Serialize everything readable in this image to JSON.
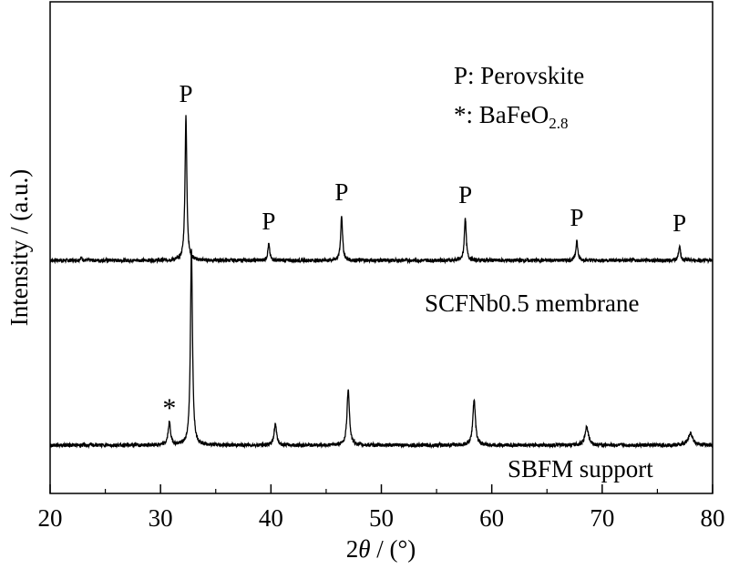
{
  "chart_data": {
    "type": "line",
    "xlabel_prefix": "2",
    "xlabel_symbol": "θ",
    "xlabel_suffix": " / (°)",
    "ylabel": "Intensity / (a.u.)",
    "xlim": [
      20,
      80
    ],
    "x_ticks": [
      "20",
      "30",
      "40",
      "50",
      "60",
      "70",
      "80"
    ],
    "y_ticks": "none",
    "grid": false,
    "legend": {
      "position": "top-right",
      "line1": "P: Perovskite",
      "line2_prefix": "*: BaFeO",
      "line2_sub": "2.8"
    },
    "series": [
      {
        "name": "SCFNb0.5 membrane",
        "baseline": 1.0,
        "peaks": [
          {
            "x": 22.8,
            "h": 0.08,
            "w": 0.1,
            "label": ""
          },
          {
            "x": 32.3,
            "h": 3.95,
            "w": 0.1,
            "label": "P"
          },
          {
            "x": 39.8,
            "h": 0.45,
            "w": 0.1,
            "label": "P"
          },
          {
            "x": 46.4,
            "h": 1.25,
            "w": 0.1,
            "label": "P"
          },
          {
            "x": 57.6,
            "h": 1.18,
            "w": 0.1,
            "label": "P"
          },
          {
            "x": 67.7,
            "h": 0.55,
            "w": 0.1,
            "label": "P"
          },
          {
            "x": 77.0,
            "h": 0.4,
            "w": 0.1,
            "label": "P"
          }
        ]
      },
      {
        "name": "SBFM support",
        "baseline": 0.0,
        "peaks": [
          {
            "x": 30.8,
            "h": 0.62,
            "w": 0.13,
            "label": "*"
          },
          {
            "x": 32.8,
            "h": 5.4,
            "w": 0.11,
            "label": ""
          },
          {
            "x": 40.4,
            "h": 0.6,
            "w": 0.13,
            "label": ""
          },
          {
            "x": 47.0,
            "h": 1.55,
            "w": 0.13,
            "label": ""
          },
          {
            "x": 58.4,
            "h": 1.25,
            "w": 0.14,
            "label": ""
          },
          {
            "x": 68.6,
            "h": 0.52,
            "w": 0.18,
            "label": ""
          },
          {
            "x": 78.0,
            "h": 0.32,
            "w": 0.25,
            "label": ""
          }
        ]
      }
    ]
  }
}
